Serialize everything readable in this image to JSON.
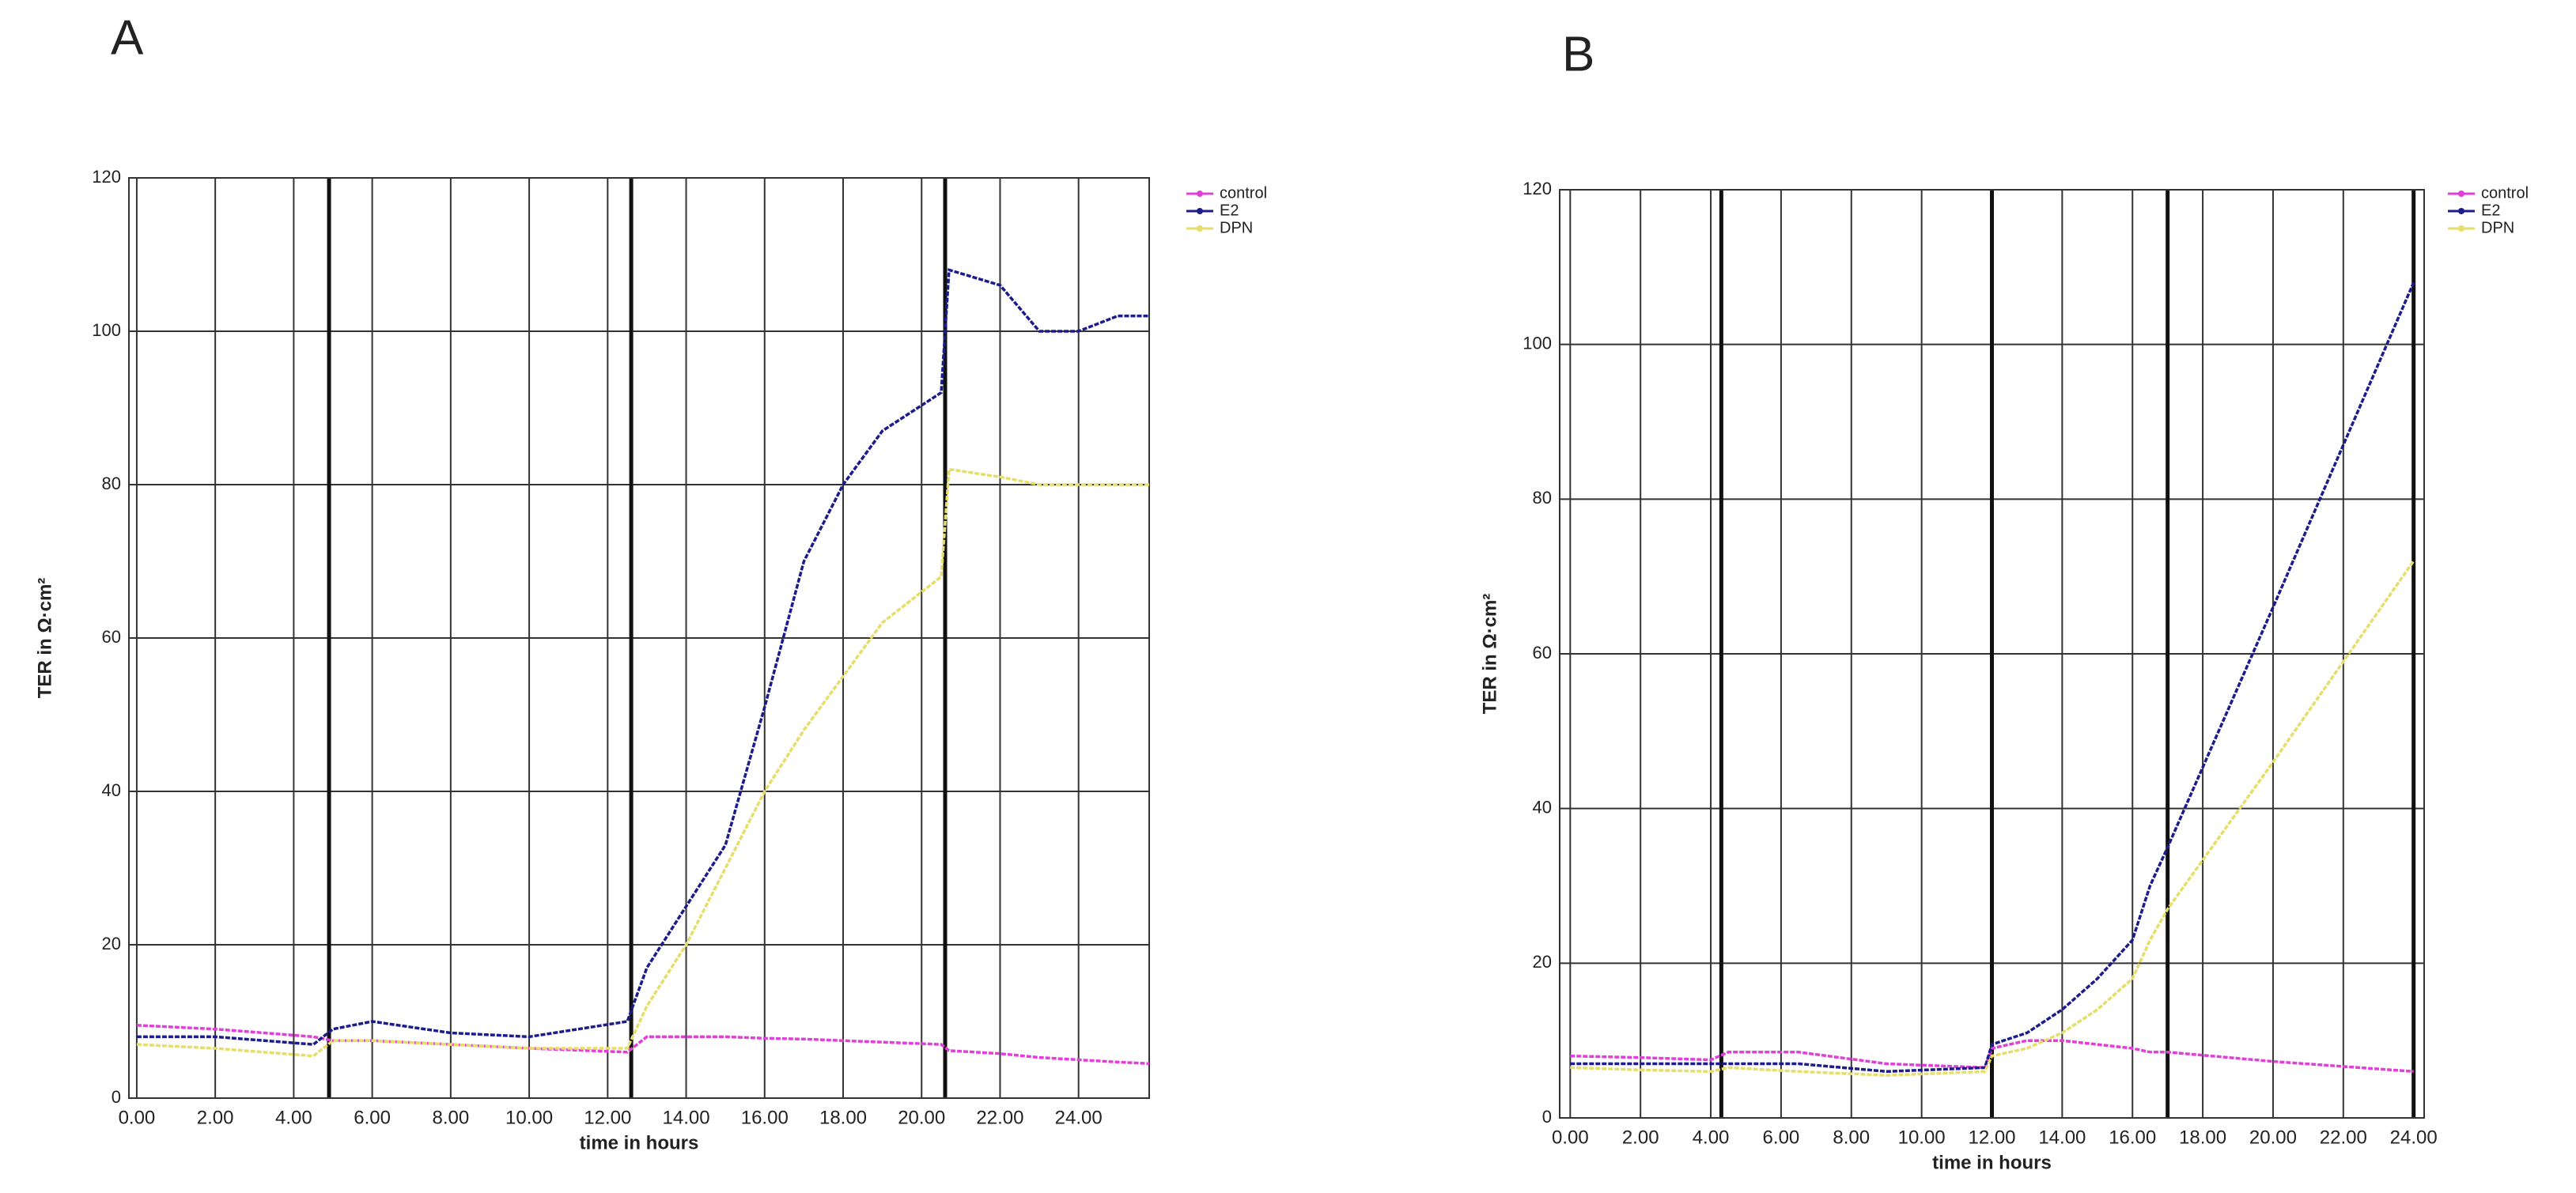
{
  "chart_data": [
    {
      "type": "line",
      "title": "A",
      "x_label": "time in hours",
      "y_label": "TER in Ω·cm²",
      "x": [
        0,
        2,
        4.5,
        5,
        6,
        8,
        10,
        12.5,
        13,
        14,
        15,
        16,
        17,
        18,
        19,
        20.5,
        20.7,
        22,
        23,
        24,
        25,
        25.8
      ],
      "series": [
        {
          "name": "control",
          "color": "#e040d8",
          "values": [
            9.5,
            9,
            8,
            7.5,
            7.5,
            7,
            6.5,
            6,
            8,
            8,
            8,
            7.8,
            7.7,
            7.5,
            7.3,
            7,
            6.2,
            5.8,
            5.3,
            5,
            4.7,
            4.5
          ]
        },
        {
          "name": "E2",
          "color": "#1c1c8c",
          "values": [
            8,
            8,
            7,
            9,
            10,
            8.5,
            8,
            10,
            17,
            25,
            33,
            51,
            70,
            80,
            87,
            92,
            108,
            106,
            100,
            100,
            102,
            102
          ]
        },
        {
          "name": "DPN",
          "color": "#e6de6a",
          "values": [
            7,
            6.5,
            5.5,
            7.5,
            7.5,
            7,
            6.5,
            6.5,
            12,
            20,
            30,
            40,
            48,
            55,
            62,
            68,
            82,
            81,
            80,
            80,
            80,
            80
          ]
        }
      ],
      "xlim": [
        -0.2,
        25.8
      ],
      "ylim": [
        0,
        120
      ],
      "xticks": [
        {
          "value": 0,
          "label": "0.00"
        },
        {
          "value": 2,
          "label": "2.00"
        },
        {
          "value": 4,
          "label": "4.00"
        },
        {
          "value": 6,
          "label": "6.00"
        },
        {
          "value": 8,
          "label": "8.00"
        },
        {
          "value": 10,
          "label": "10.00"
        },
        {
          "value": 12,
          "label": "12.00"
        },
        {
          "value": 14,
          "label": "14.00"
        },
        {
          "value": 16,
          "label": "16.00"
        },
        {
          "value": 18,
          "label": "18.00"
        },
        {
          "value": 20,
          "label": "20.00"
        },
        {
          "value": 22,
          "label": "22.00"
        },
        {
          "value": 24,
          "label": "24.00"
        }
      ],
      "yticks": [
        0,
        20,
        40,
        60,
        80,
        100,
        120
      ],
      "breaks": [
        4.9,
        12.6,
        20.6
      ],
      "grid": true,
      "legend": "outside-top-right"
    },
    {
      "type": "line",
      "title": "B",
      "x_label": "time in hours",
      "y_label": "TER in Ω·cm²",
      "x": [
        0,
        2,
        4,
        4.5,
        6.5,
        9,
        11.8,
        12,
        13,
        14,
        15,
        16,
        16.5,
        17,
        20,
        24
      ],
      "series": [
        {
          "name": "control",
          "color": "#e040d8",
          "values": [
            8,
            7.8,
            7.5,
            8.5,
            8.5,
            7,
            6.5,
            9,
            10,
            10,
            9.5,
            9,
            8.5,
            8.5,
            7.3,
            6
          ]
        },
        {
          "name": "E2",
          "color": "#1c1c8c",
          "values": [
            7,
            7,
            7,
            7,
            7,
            6,
            6.5,
            9.5,
            11,
            14,
            18,
            23,
            30,
            35,
            66,
            108
          ]
        },
        {
          "name": "DPN",
          "color": "#e6de6a",
          "values": [
            6.5,
            6.2,
            6,
            6.5,
            6,
            5.5,
            6,
            8,
            9,
            11,
            14,
            18,
            23,
            27,
            46,
            72
          ]
        }
      ],
      "xlim": [
        -0.3,
        24.3
      ],
      "ylim": [
        0,
        120
      ],
      "xticks": [
        {
          "value": 0,
          "label": "0.00"
        },
        {
          "value": 2,
          "label": "2.00"
        },
        {
          "value": 4,
          "label": "4.00"
        },
        {
          "value": 6,
          "label": "6.00"
        },
        {
          "value": 8,
          "label": "8.00"
        },
        {
          "value": 10,
          "label": "10.00"
        },
        {
          "value": 12,
          "label": "12.00"
        },
        {
          "value": 14,
          "label": "14.00"
        },
        {
          "value": 16,
          "label": "16.00"
        },
        {
          "value": 18,
          "label": "18.00"
        },
        {
          "value": 20,
          "label": "20.00"
        },
        {
          "value": 22,
          "label": "22.00"
        },
        {
          "value": 24,
          "label": "24.00"
        }
      ],
      "yticks": [
        0,
        20,
        40,
        60,
        80,
        100,
        120
      ],
      "breaks": [
        4.3,
        12,
        17,
        24
      ],
      "grid": true,
      "legend": "outside-top-right"
    }
  ]
}
